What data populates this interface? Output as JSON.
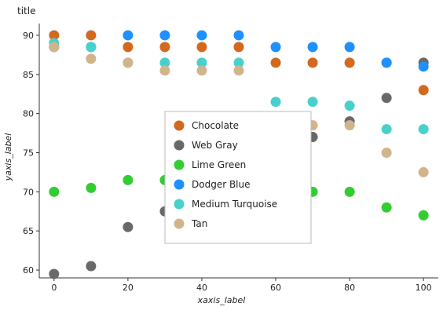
{
  "chart_data": {
    "type": "scatter",
    "title": "title",
    "xlabel": "xaxis_label",
    "ylabel": "yaxis_label",
    "xlim": [
      -4,
      104
    ],
    "ylim": [
      59,
      91.5
    ],
    "xticks": [
      0,
      20,
      40,
      60,
      80,
      100
    ],
    "yticks": [
      60,
      65,
      70,
      75,
      80,
      85,
      90
    ],
    "grid": false,
    "legend_position": "center",
    "x": [
      0,
      10,
      20,
      30,
      40,
      50,
      60,
      70,
      80,
      90,
      100
    ],
    "series": [
      {
        "name": "Chocolate",
        "color": "#d2691e",
        "values": [
          90,
          90,
          88.5,
          88.5,
          88.5,
          88.5,
          86.5,
          86.5,
          86.5,
          86.5,
          83
        ]
      },
      {
        "name": "Web Gray",
        "color": "#696969",
        "values": [
          59.5,
          60.5,
          65.5,
          67.5,
          70,
          72.5,
          74.5,
          77,
          79,
          82,
          86.5
        ]
      },
      {
        "name": "Lime Green",
        "color": "#32cd32",
        "values": [
          70,
          70.5,
          71.5,
          71.5,
          71.5,
          70.5,
          70.5,
          70,
          70,
          68,
          67
        ]
      },
      {
        "name": "Dodger Blue",
        "color": "#1e90ff",
        "values": [
          88.5,
          88.5,
          90,
          90,
          90,
          90,
          88.5,
          88.5,
          88.5,
          86.5,
          86
        ]
      },
      {
        "name": "Medium Turquoise",
        "color": "#48d1cc",
        "values": [
          89,
          88.5,
          86.5,
          86.5,
          86.5,
          86.5,
          81.5,
          81.5,
          81,
          78,
          78
        ]
      },
      {
        "name": "Tan",
        "color": "#d2b48c",
        "values": [
          88.5,
          87,
          86.5,
          85.5,
          85.5,
          85.5,
          78.5,
          78.5,
          78.5,
          75,
          72.5
        ]
      }
    ]
  }
}
